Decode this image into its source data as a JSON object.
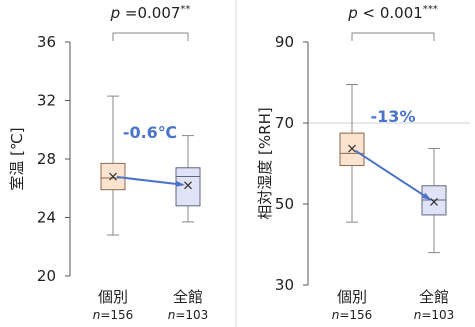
{
  "colors": {
    "box1_fill": "#fbe3d0",
    "box1_stroke": "#8a6a50",
    "box2_fill": "#dfe3f5",
    "box2_stroke": "#5f6680",
    "arrow": "#4a73c9",
    "diff_text": "#4a73c9",
    "divider": "#d8d8d8",
    "axis": "#555555"
  },
  "chart_data": [
    {
      "type": "boxplot",
      "ylabel": "室温 [℃]",
      "ylim": [
        20,
        36
      ],
      "yticks": [
        "36",
        "32",
        "28",
        "24",
        "20"
      ],
      "ytick_values": [
        36,
        32,
        28,
        24,
        20
      ],
      "categories": [
        "個別",
        "全館"
      ],
      "n_prefix": "n",
      "n_labels": [
        "=156",
        "=103"
      ],
      "boxes": [
        {
          "min": 22.8,
          "q1": 25.9,
          "median": 26.7,
          "q3": 27.7,
          "max": 32.3,
          "mean": 26.8
        },
        {
          "min": 23.7,
          "q1": 24.8,
          "median": 26.8,
          "q3": 27.4,
          "max": 29.6,
          "mean": 26.2
        }
      ],
      "significance": {
        "prefix": "p",
        "text": " =0.007",
        "stars": "**"
      },
      "difference": "-0.6℃",
      "gridline_at": null
    },
    {
      "type": "boxplot",
      "ylabel": "相対湿度 [%RH]",
      "ylim": [
        30,
        90
      ],
      "yticks": [
        "90",
        "70",
        "50",
        "30"
      ],
      "ytick_values": [
        90,
        70,
        50,
        30
      ],
      "categories": [
        "個別",
        "全館"
      ],
      "n_prefix": "n",
      "n_labels": [
        "=156",
        "=103"
      ],
      "boxes": [
        {
          "min": 45.5,
          "q1": 59.5,
          "median": 62.5,
          "q3": 67.5,
          "max": 79.5,
          "mean": 63.7
        },
        {
          "min": 38.0,
          "q1": 47.3,
          "median": 51.0,
          "q3": 54.5,
          "max": 63.7,
          "mean": 50.5
        }
      ],
      "significance": {
        "prefix": "p",
        "text": " < 0.001",
        "stars": "***"
      },
      "difference": "-13%",
      "gridline_at": 70
    }
  ]
}
